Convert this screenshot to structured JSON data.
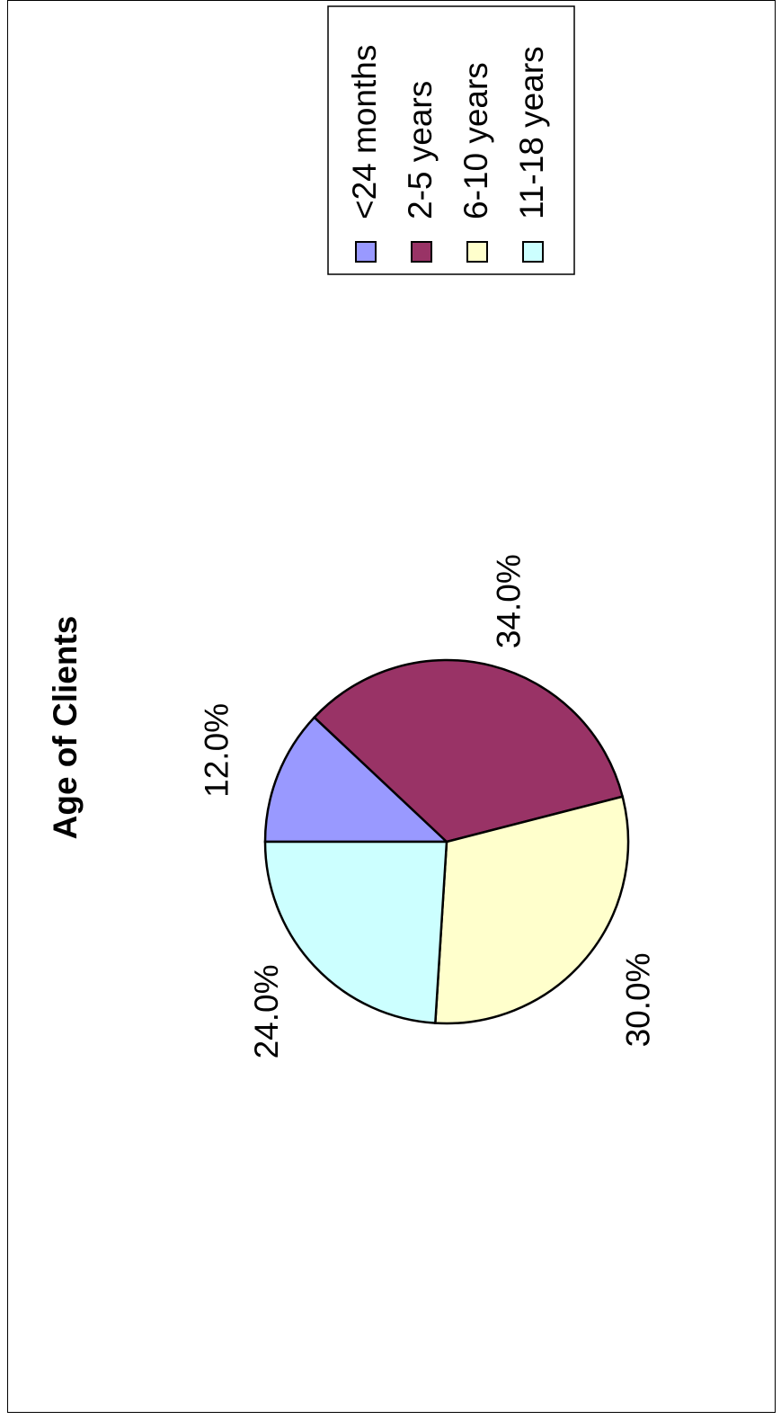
{
  "chart_data": {
    "type": "pie",
    "title": "Age of Clients",
    "categories": [
      "<24 months",
      "2-5 years",
      "6-10 years",
      "11-18 years"
    ],
    "values": [
      12.0,
      34.0,
      30.0,
      24.0
    ],
    "value_labels": [
      "12.0%",
      "34.0%",
      "30.0%",
      "24.0%"
    ],
    "colors": [
      "#9999ff",
      "#993366",
      "#ffffcc",
      "#ccffff"
    ],
    "legend_position": "right",
    "orientation": "rotated 90 degrees counter-clockwise"
  }
}
